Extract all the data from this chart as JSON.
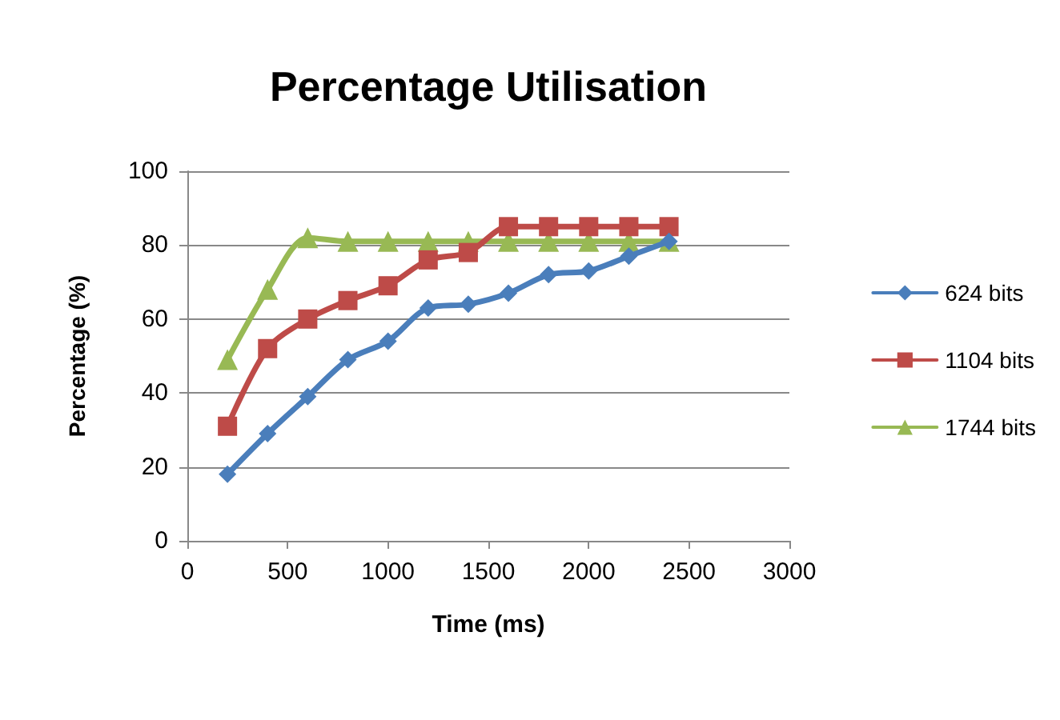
{
  "chart_data": {
    "type": "line",
    "title": "Percentage Utilisation",
    "xlabel": "Time (ms)",
    "ylabel": "Percentage (%)",
    "x": [
      200,
      400,
      600,
      800,
      1000,
      1200,
      1400,
      1600,
      1800,
      2000,
      2200,
      2400
    ],
    "series": [
      {
        "name": "624 bits",
        "color": "#4a7ebb",
        "marker": "diamond",
        "values": [
          18,
          29,
          39,
          49,
          54,
          63,
          64,
          67,
          72,
          73,
          77,
          81
        ]
      },
      {
        "name": "1104 bits",
        "color": "#be4b48",
        "marker": "square",
        "values": [
          31,
          52,
          60,
          65,
          69,
          76,
          78,
          85,
          85,
          85,
          85,
          85
        ]
      },
      {
        "name": "1744 bits",
        "color": "#98b954",
        "marker": "triangle",
        "values": [
          49,
          68,
          82,
          81,
          81,
          81,
          81,
          81,
          81,
          81,
          81,
          81
        ]
      }
    ],
    "xlim": [
      0,
      3000
    ],
    "xticks": [
      0,
      500,
      1000,
      1500,
      2000,
      2500,
      3000
    ],
    "ylim": [
      0,
      100
    ],
    "yticks": [
      0,
      20,
      40,
      60,
      80,
      100
    ],
    "grid": "y",
    "legend": "right",
    "line_style": "solid"
  }
}
